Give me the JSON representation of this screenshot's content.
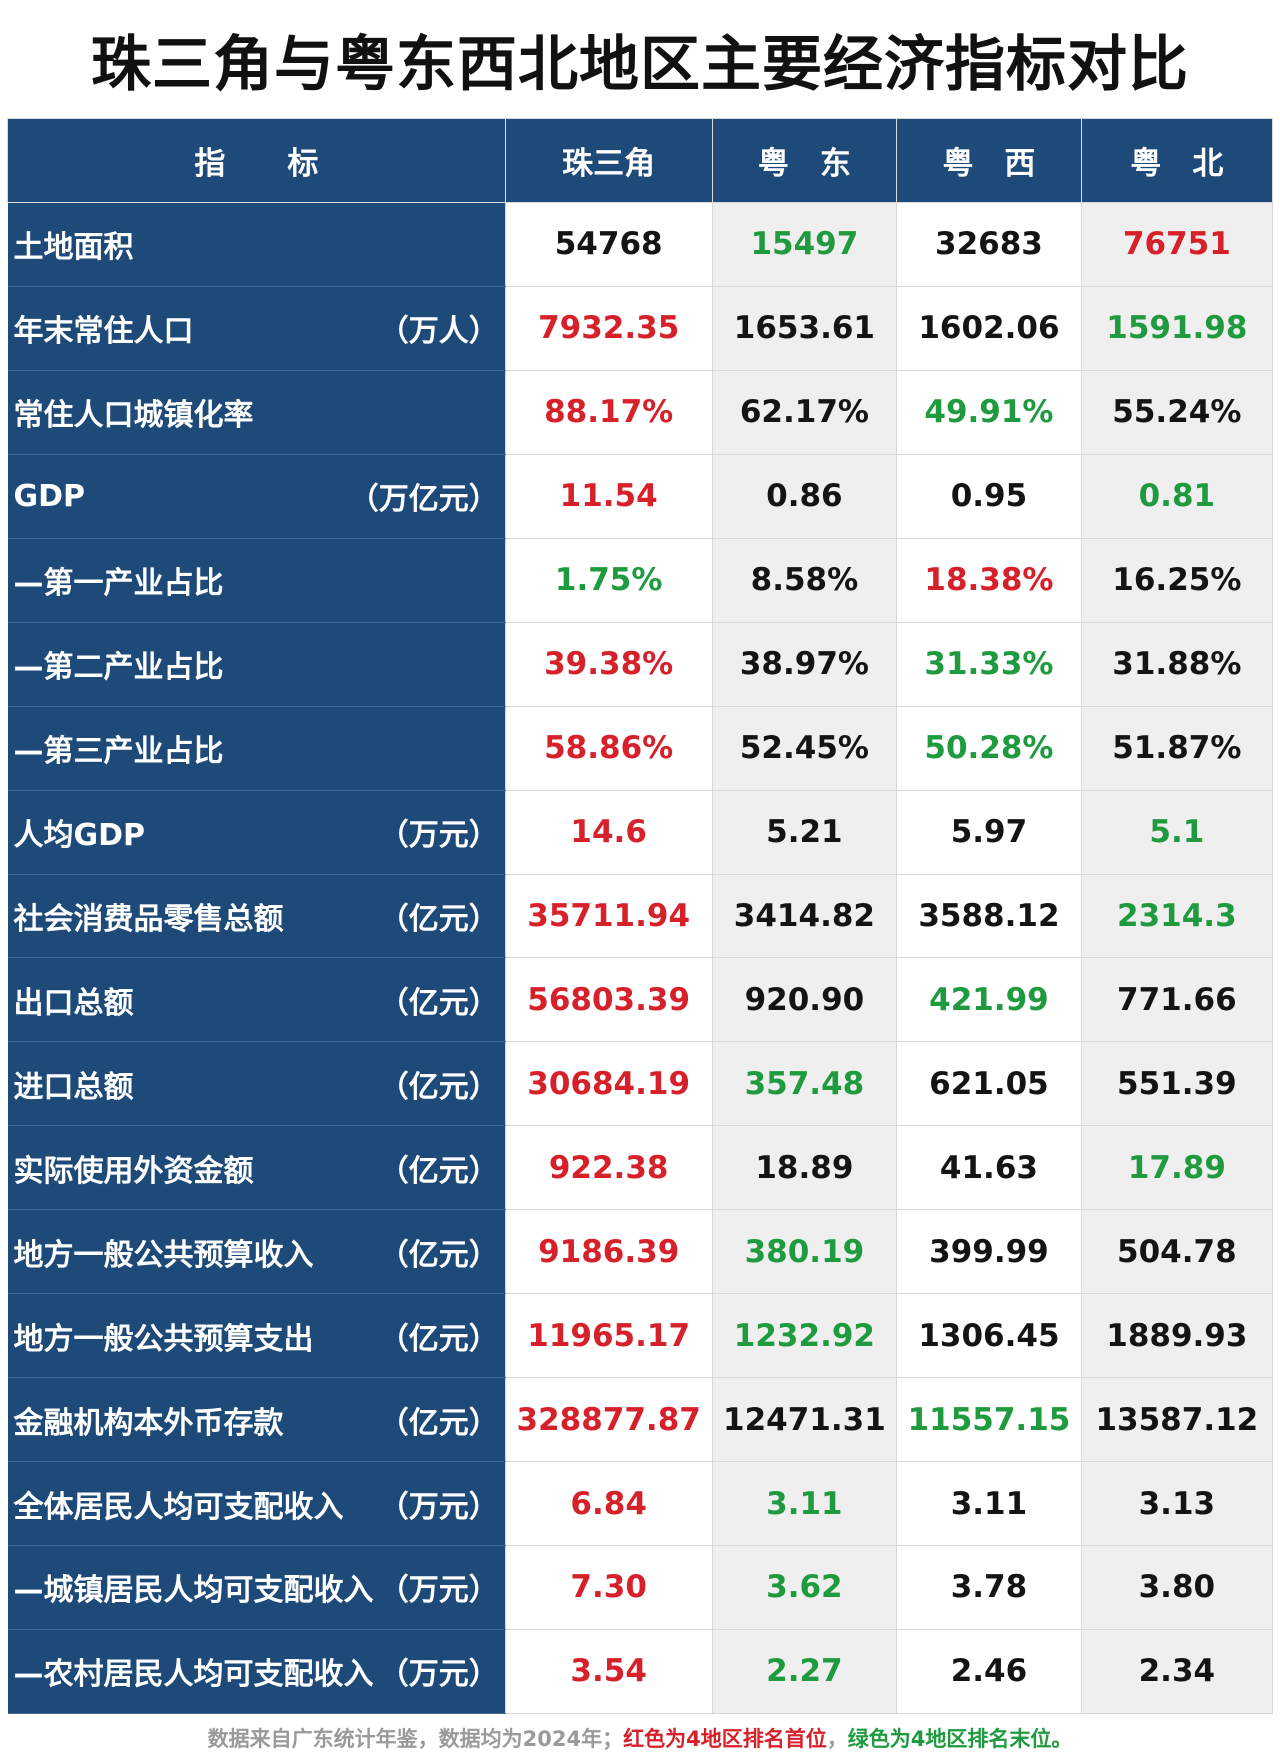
{
  "title": "珠三角与粤东西北地区主要经济指标对比",
  "colors": {
    "header_bg": "#1e4a7a",
    "highest": "#d6202a",
    "lowest": "#1f9a3f"
  },
  "table": {
    "headers": [
      "指　　标",
      "珠三角",
      "粤　东",
      "粤　西",
      "粤　北"
    ],
    "rows": [
      {
        "label": "土地面积",
        "unit": "",
        "values": [
          "54768",
          "15497",
          "32683",
          "76751"
        ],
        "marks": [
          "",
          "g",
          "",
          "r"
        ]
      },
      {
        "label": "年末常住人口",
        "unit": "（万人）",
        "values": [
          "7932.35",
          "1653.61",
          "1602.06",
          "1591.98"
        ],
        "marks": [
          "r",
          "",
          "",
          "g"
        ]
      },
      {
        "label": "常住人口城镇化率",
        "unit": "",
        "values": [
          "88.17%",
          "62.17%",
          "49.91%",
          "55.24%"
        ],
        "marks": [
          "r",
          "",
          "g",
          ""
        ]
      },
      {
        "label": "GDP",
        "unit": "（万亿元）",
        "values": [
          "11.54",
          "0.86",
          "0.95",
          "0.81"
        ],
        "marks": [
          "r",
          "",
          "",
          "g"
        ]
      },
      {
        "label": "—第一产业占比",
        "unit": "",
        "values": [
          "1.75%",
          "8.58%",
          "18.38%",
          "16.25%"
        ],
        "marks": [
          "g",
          "",
          "r",
          ""
        ]
      },
      {
        "label": "—第二产业占比",
        "unit": "",
        "values": [
          "39.38%",
          "38.97%",
          "31.33%",
          "31.88%"
        ],
        "marks": [
          "r",
          "",
          "g",
          ""
        ]
      },
      {
        "label": "—第三产业占比",
        "unit": "",
        "values": [
          "58.86%",
          "52.45%",
          "50.28%",
          "51.87%"
        ],
        "marks": [
          "r",
          "",
          "g",
          ""
        ]
      },
      {
        "label": "人均GDP",
        "unit": "（万元）",
        "values": [
          "14.6",
          "5.21",
          "5.97",
          "5.1"
        ],
        "marks": [
          "r",
          "",
          "",
          "g"
        ]
      },
      {
        "label": "社会消费品零售总额",
        "unit": "（亿元）",
        "values": [
          "35711.94",
          "3414.82",
          "3588.12",
          "2314.3"
        ],
        "marks": [
          "r",
          "",
          "",
          "g"
        ]
      },
      {
        "label": "出口总额",
        "unit": "（亿元）",
        "values": [
          "56803.39",
          "920.90",
          "421.99",
          "771.66"
        ],
        "marks": [
          "r",
          "",
          "g",
          ""
        ]
      },
      {
        "label": "进口总额",
        "unit": "（亿元）",
        "values": [
          "30684.19",
          "357.48",
          "621.05",
          "551.39"
        ],
        "marks": [
          "r",
          "g",
          "",
          ""
        ]
      },
      {
        "label": "实际使用外资金额",
        "unit": "（亿元）",
        "values": [
          "922.38",
          "18.89",
          "41.63",
          "17.89"
        ],
        "marks": [
          "r",
          "",
          "",
          "g"
        ]
      },
      {
        "label": "地方一般公共预算收入",
        "unit": "（亿元）",
        "values": [
          "9186.39",
          "380.19",
          "399.99",
          "504.78"
        ],
        "marks": [
          "r",
          "g",
          "",
          ""
        ]
      },
      {
        "label": "地方一般公共预算支出",
        "unit": "（亿元）",
        "values": [
          "11965.17",
          "1232.92",
          "1306.45",
          "1889.93"
        ],
        "marks": [
          "r",
          "g",
          "",
          ""
        ]
      },
      {
        "label": "金融机构本外币存款",
        "unit": "（亿元）",
        "values": [
          "328877.87",
          "12471.31",
          "11557.15",
          "13587.12"
        ],
        "marks": [
          "r",
          "",
          "g",
          ""
        ]
      },
      {
        "label": "全体居民人均可支配收入",
        "unit": "（万元）",
        "values": [
          "6.84",
          "3.11",
          "3.11",
          "3.13"
        ],
        "marks": [
          "r",
          "g",
          "",
          ""
        ]
      },
      {
        "label": "—城镇居民人均可支配收入",
        "unit": "（万元）",
        "values": [
          "7.30",
          "3.62",
          "3.78",
          "3.80"
        ],
        "marks": [
          "r",
          "g",
          "",
          ""
        ]
      },
      {
        "label": "—农村居民人均可支配收入",
        "unit": "（万元）",
        "values": [
          "3.54",
          "2.27",
          "2.46",
          "2.34"
        ],
        "marks": [
          "r",
          "g",
          "",
          ""
        ]
      }
    ]
  },
  "footer": {
    "note": "数据来自广东统计年鉴，数据均为2024年；",
    "red_note": "红色为4地区排名首位",
    "sep": "，",
    "green_note": "绿色为4地区排名末位。"
  }
}
